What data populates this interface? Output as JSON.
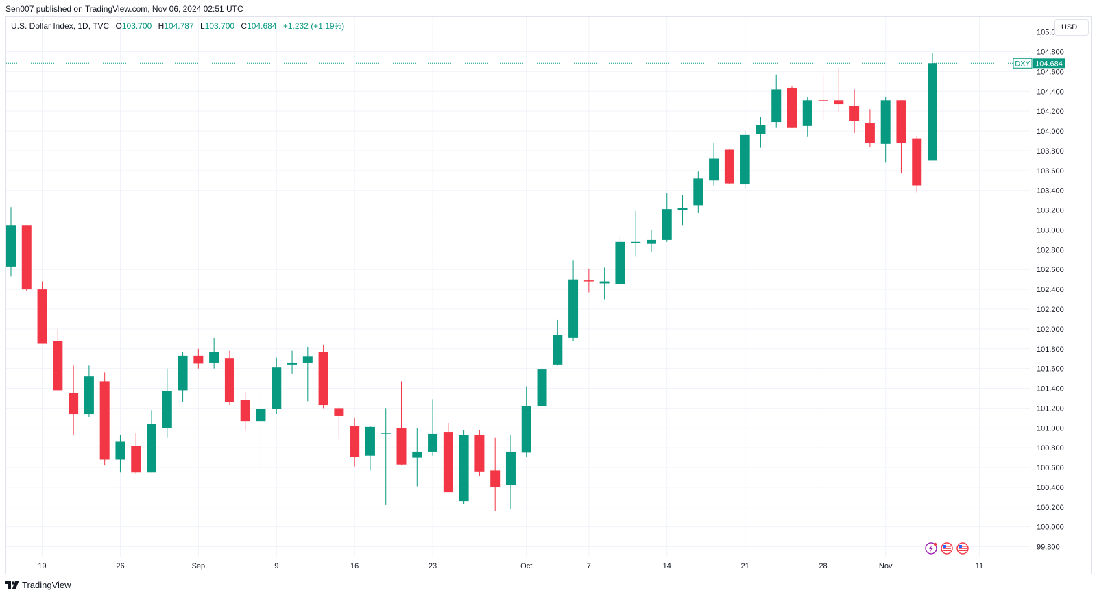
{
  "header": {
    "publish_line": "Sen007 published on TradingView.com, Nov 06, 2024 02:51 UTC"
  },
  "legend": {
    "symbol": "U.S. Dollar Index, 1D, TVC",
    "o_label": "O",
    "o_value": "103.700",
    "h_label": "H",
    "h_value": "104.787",
    "l_label": "L",
    "l_value": "103.700",
    "c_label": "C",
    "c_value": "104.684",
    "change": "+1.232 (+1.19%)"
  },
  "currency_button": "USD",
  "footer": {
    "brand": "TradingView"
  },
  "colors": {
    "up": "#089981",
    "down": "#f23645",
    "grid": "#f0f3fa",
    "text": "#131722"
  },
  "icons": [
    "lightning-icon",
    "us-flag-icon",
    "us-flag-icon"
  ],
  "chart_data": {
    "type": "candlestick",
    "ylim": [
      99.7,
      105.15
    ],
    "y_ticks": [
      "105.000",
      "104.800",
      "104.600",
      "104.400",
      "104.200",
      "104.000",
      "103.800",
      "103.600",
      "103.400",
      "103.200",
      "103.000",
      "102.800",
      "102.600",
      "102.400",
      "102.200",
      "102.000",
      "101.800",
      "101.600",
      "101.400",
      "101.200",
      "101.000",
      "100.800",
      "100.600",
      "100.400",
      "100.200",
      "100.000",
      "99.800"
    ],
    "x_labels": [
      {
        "label": "19",
        "index": 2
      },
      {
        "label": "26",
        "index": 7
      },
      {
        "label": "Sep",
        "index": 12
      },
      {
        "label": "9",
        "index": 17
      },
      {
        "label": "16",
        "index": 22
      },
      {
        "label": "23",
        "index": 27
      },
      {
        "label": "Oct",
        "index": 33
      },
      {
        "label": "7",
        "index": 37
      },
      {
        "label": "14",
        "index": 42
      },
      {
        "label": "21",
        "index": 47
      },
      {
        "label": "28",
        "index": 52
      },
      {
        "label": "Nov",
        "index": 56
      },
      {
        "label": "11",
        "index": 62
      }
    ],
    "last_price_label": "DXY",
    "last_price_value": "104.684",
    "candles": [
      {
        "o": 102.63,
        "h": 103.23,
        "l": 102.53,
        "c": 103.05
      },
      {
        "o": 103.05,
        "h": 103.05,
        "l": 102.38,
        "c": 102.4
      },
      {
        "o": 102.4,
        "h": 102.48,
        "l": 101.85,
        "c": 101.85
      },
      {
        "o": 101.88,
        "h": 102.0,
        "l": 101.38,
        "c": 101.38
      },
      {
        "o": 101.35,
        "h": 101.63,
        "l": 100.93,
        "c": 101.14
      },
      {
        "o": 101.14,
        "h": 101.63,
        "l": 101.11,
        "c": 101.52
      },
      {
        "o": 101.47,
        "h": 101.56,
        "l": 100.62,
        "c": 100.68
      },
      {
        "o": 100.68,
        "h": 100.93,
        "l": 100.55,
        "c": 100.86
      },
      {
        "o": 100.82,
        "h": 100.95,
        "l": 100.53,
        "c": 100.55
      },
      {
        "o": 100.55,
        "h": 101.18,
        "l": 100.55,
        "c": 101.04
      },
      {
        "o": 101.0,
        "h": 101.6,
        "l": 100.9,
        "c": 101.37
      },
      {
        "o": 101.38,
        "h": 101.77,
        "l": 101.26,
        "c": 101.73
      },
      {
        "o": 101.73,
        "h": 101.8,
        "l": 101.6,
        "c": 101.65
      },
      {
        "o": 101.66,
        "h": 101.91,
        "l": 101.6,
        "c": 101.77
      },
      {
        "o": 101.7,
        "h": 101.78,
        "l": 101.23,
        "c": 101.26
      },
      {
        "o": 101.28,
        "h": 101.36,
        "l": 100.97,
        "c": 101.07
      },
      {
        "o": 101.07,
        "h": 101.4,
        "l": 100.59,
        "c": 101.19
      },
      {
        "o": 101.19,
        "h": 101.71,
        "l": 101.14,
        "c": 101.61
      },
      {
        "o": 101.64,
        "h": 101.78,
        "l": 101.55,
        "c": 101.66
      },
      {
        "o": 101.66,
        "h": 101.82,
        "l": 101.27,
        "c": 101.72
      },
      {
        "o": 101.77,
        "h": 101.84,
        "l": 101.2,
        "c": 101.23
      },
      {
        "o": 101.2,
        "h": 101.21,
        "l": 100.89,
        "c": 101.12
      },
      {
        "o": 101.02,
        "h": 101.1,
        "l": 100.61,
        "c": 100.71
      },
      {
        "o": 100.72,
        "h": 101.02,
        "l": 100.57,
        "c": 101.01
      },
      {
        "o": 100.95,
        "h": 101.2,
        "l": 100.22,
        "c": 100.95
      },
      {
        "o": 101.0,
        "h": 101.47,
        "l": 100.62,
        "c": 100.63
      },
      {
        "o": 100.7,
        "h": 101.0,
        "l": 100.41,
        "c": 100.76
      },
      {
        "o": 100.76,
        "h": 101.29,
        "l": 100.72,
        "c": 100.94
      },
      {
        "o": 100.96,
        "h": 101.05,
        "l": 100.35,
        "c": 100.35
      },
      {
        "o": 100.26,
        "h": 100.98,
        "l": 100.23,
        "c": 100.93
      },
      {
        "o": 100.93,
        "h": 100.98,
        "l": 100.51,
        "c": 100.56
      },
      {
        "o": 100.57,
        "h": 100.9,
        "l": 100.16,
        "c": 100.4
      },
      {
        "o": 100.42,
        "h": 100.93,
        "l": 100.18,
        "c": 100.76
      },
      {
        "o": 100.75,
        "h": 101.42,
        "l": 100.71,
        "c": 101.22
      },
      {
        "o": 101.22,
        "h": 101.69,
        "l": 101.16,
        "c": 101.59
      },
      {
        "o": 101.64,
        "h": 102.09,
        "l": 101.63,
        "c": 101.94
      },
      {
        "o": 101.91,
        "h": 102.69,
        "l": 101.88,
        "c": 102.5
      },
      {
        "o": 102.49,
        "h": 102.61,
        "l": 102.37,
        "c": 102.48
      },
      {
        "o": 102.46,
        "h": 102.62,
        "l": 102.3,
        "c": 102.48
      },
      {
        "o": 102.45,
        "h": 102.93,
        "l": 102.45,
        "c": 102.88
      },
      {
        "o": 102.88,
        "h": 103.19,
        "l": 102.73,
        "c": 102.88
      },
      {
        "o": 102.86,
        "h": 103.0,
        "l": 102.78,
        "c": 102.9
      },
      {
        "o": 102.9,
        "h": 103.37,
        "l": 102.88,
        "c": 103.21
      },
      {
        "o": 103.2,
        "h": 103.35,
        "l": 103.05,
        "c": 103.22
      },
      {
        "o": 103.25,
        "h": 103.59,
        "l": 103.17,
        "c": 103.52
      },
      {
        "o": 103.5,
        "h": 103.88,
        "l": 103.45,
        "c": 103.72
      },
      {
        "o": 103.81,
        "h": 103.82,
        "l": 103.46,
        "c": 103.47
      },
      {
        "o": 103.46,
        "h": 104.0,
        "l": 103.42,
        "c": 103.96
      },
      {
        "o": 103.97,
        "h": 104.14,
        "l": 103.83,
        "c": 104.06
      },
      {
        "o": 104.09,
        "h": 104.57,
        "l": 104.03,
        "c": 104.42
      },
      {
        "o": 104.43,
        "h": 104.45,
        "l": 104.03,
        "c": 104.03
      },
      {
        "o": 104.05,
        "h": 104.34,
        "l": 103.94,
        "c": 104.31
      },
      {
        "o": 104.31,
        "h": 104.57,
        "l": 104.12,
        "c": 104.3
      },
      {
        "o": 104.31,
        "h": 104.64,
        "l": 104.19,
        "c": 104.27
      },
      {
        "o": 104.25,
        "h": 104.42,
        "l": 103.98,
        "c": 104.1
      },
      {
        "o": 104.08,
        "h": 104.22,
        "l": 103.84,
        "c": 103.88
      },
      {
        "o": 103.87,
        "h": 104.34,
        "l": 103.68,
        "c": 104.31
      },
      {
        "o": 104.31,
        "h": 104.31,
        "l": 103.57,
        "c": 103.88
      },
      {
        "o": 103.92,
        "h": 103.95,
        "l": 103.38,
        "c": 103.45
      },
      {
        "o": 103.7,
        "h": 104.787,
        "l": 103.7,
        "c": 104.684
      }
    ]
  }
}
